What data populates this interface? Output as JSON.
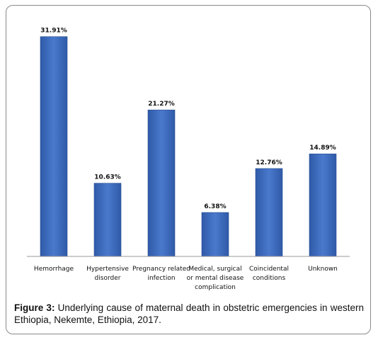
{
  "chart_data": {
    "type": "bar",
    "categories": [
      [
        "Hemorrhage"
      ],
      [
        "Hypertensive",
        "disorder"
      ],
      [
        "Pregnancy related",
        "infection"
      ],
      [
        "Medical, surgical",
        "or mental disease",
        "complication"
      ],
      [
        "Coincidental",
        "conditions"
      ],
      [
        "Unknown"
      ]
    ],
    "values": [
      31.91,
      10.63,
      21.27,
      6.38,
      12.76,
      14.89
    ],
    "value_labels": [
      "31.91%",
      "10.63%",
      "21.27%",
      "6.38%",
      "12.76%",
      "14.89%"
    ],
    "ylim": [
      0,
      32.6
    ],
    "grid": false,
    "bar_color": "#4472c4"
  },
  "caption": {
    "label": "Figure 3:",
    "text": " Underlying cause of maternal death in obstetric emergencies in western Ethiopia, Nekemte, Ethiopia, 2017."
  }
}
